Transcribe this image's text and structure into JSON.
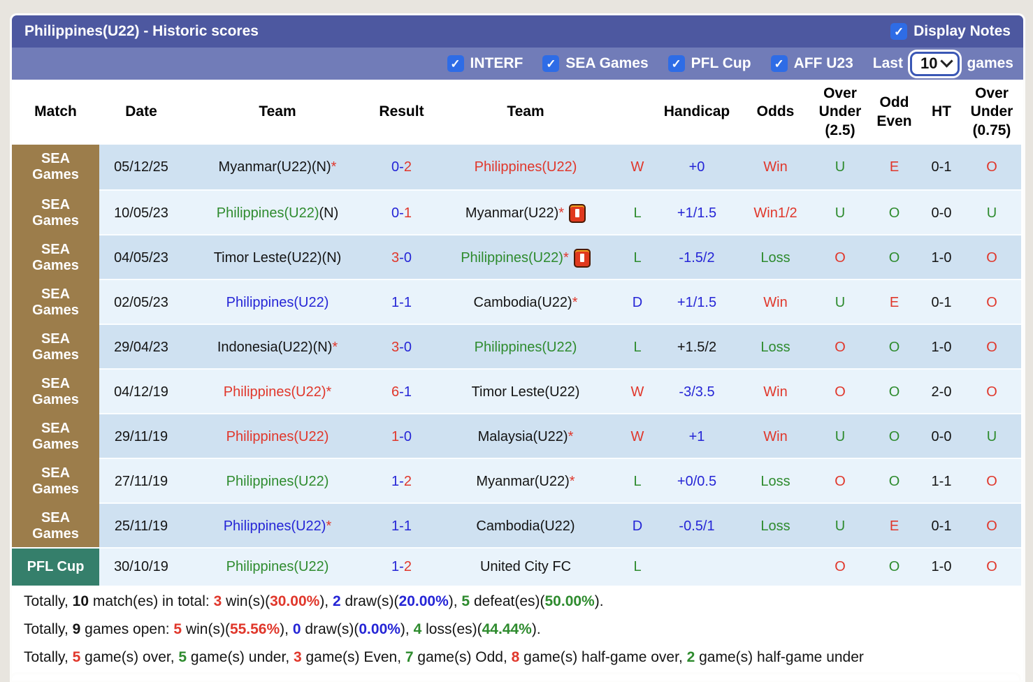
{
  "header": {
    "title": "Philippines(U22) - Historic scores",
    "display_notes_label": "Display Notes"
  },
  "filters": {
    "items": [
      "INTERF",
      "SEA Games",
      "PFL Cup",
      "AFF U23"
    ],
    "last_label": "Last",
    "last_value": "10",
    "games_label": "games"
  },
  "colors": {
    "red": "#e0372b",
    "green": "#2e8b2e",
    "blue": "#2525d6",
    "black": "#141414"
  },
  "match_colors": {
    "SEA Games": "#9c7d4b",
    "PFL Cup": "#357f6b"
  },
  "row_colors": {
    "dark": "#cfe1f1",
    "light": "#e9f3fb"
  },
  "table": {
    "columns": [
      "Match",
      "Date",
      "Team",
      "Result",
      "Team",
      "",
      "Handicap",
      "Odds",
      "Over\nUnder\n(2.5)",
      "Odd\nEven",
      "HT",
      "Over\nUnder\n(0.75)"
    ],
    "rows": [
      {
        "category": "SEA Games",
        "date": "05/12/25",
        "home": [
          {
            "t": "Myanmar(U22)(N)"
          },
          {
            "t": "*",
            "c": "red"
          }
        ],
        "home_card": false,
        "result": [
          {
            "t": "0",
            "c": "blue"
          },
          {
            "t": "-",
            "c": "blue"
          },
          {
            "t": "2",
            "c": "red"
          }
        ],
        "away": [
          {
            "t": "Philippines(U22)",
            "c": "red"
          }
        ],
        "away_card": false,
        "wdl": {
          "t": "W",
          "c": "red"
        },
        "handicap": {
          "t": "+0",
          "c": "blue"
        },
        "odds": {
          "t": "Win",
          "c": "red"
        },
        "ou25": {
          "t": "U",
          "c": "green"
        },
        "oddeven": {
          "t": "E",
          "c": "red"
        },
        "ht": "0-1",
        "ou75": {
          "t": "O",
          "c": "red"
        }
      },
      {
        "category": "SEA Games",
        "date": "10/05/23",
        "home": [
          {
            "t": "Philippines(U22)",
            "c": "green"
          },
          {
            "t": "(N)"
          }
        ],
        "home_card": false,
        "result": [
          {
            "t": "0",
            "c": "blue"
          },
          {
            "t": "-",
            "c": "blue"
          },
          {
            "t": "1",
            "c": "red"
          }
        ],
        "away": [
          {
            "t": "Myanmar(U22)"
          },
          {
            "t": "*",
            "c": "red"
          }
        ],
        "away_card": true,
        "wdl": {
          "t": "L",
          "c": "green"
        },
        "handicap": {
          "t": "+1/1.5",
          "c": "blue"
        },
        "odds": {
          "t": "Win1/2",
          "c": "red"
        },
        "ou25": {
          "t": "U",
          "c": "green"
        },
        "oddeven": {
          "t": "O",
          "c": "green"
        },
        "ht": "0-0",
        "ou75": {
          "t": "U",
          "c": "green"
        }
      },
      {
        "category": "SEA Games",
        "date": "04/05/23",
        "home": [
          {
            "t": "Timor Leste(U22)(N)"
          }
        ],
        "home_card": false,
        "result": [
          {
            "t": "3",
            "c": "red"
          },
          {
            "t": "-",
            "c": "blue"
          },
          {
            "t": "0",
            "c": "blue"
          }
        ],
        "away": [
          {
            "t": "Philippines(U22)",
            "c": "green"
          },
          {
            "t": "*",
            "c": "red"
          }
        ],
        "away_card": true,
        "wdl": {
          "t": "L",
          "c": "green"
        },
        "handicap": {
          "t": "-1.5/2",
          "c": "blue"
        },
        "odds": {
          "t": "Loss",
          "c": "green"
        },
        "ou25": {
          "t": "O",
          "c": "red"
        },
        "oddeven": {
          "t": "O",
          "c": "green"
        },
        "ht": "1-0",
        "ou75": {
          "t": "O",
          "c": "red"
        }
      },
      {
        "category": "SEA Games",
        "date": "02/05/23",
        "home": [
          {
            "t": "Philippines(U22)",
            "c": "blue"
          }
        ],
        "home_card": false,
        "result": [
          {
            "t": "1",
            "c": "blue"
          },
          {
            "t": "-",
            "c": "blue"
          },
          {
            "t": "1",
            "c": "blue"
          }
        ],
        "away": [
          {
            "t": "Cambodia(U22)"
          },
          {
            "t": "*",
            "c": "red"
          }
        ],
        "away_card": false,
        "wdl": {
          "t": "D",
          "c": "blue"
        },
        "handicap": {
          "t": "+1/1.5",
          "c": "blue"
        },
        "odds": {
          "t": "Win",
          "c": "red"
        },
        "ou25": {
          "t": "U",
          "c": "green"
        },
        "oddeven": {
          "t": "E",
          "c": "red"
        },
        "ht": "0-1",
        "ou75": {
          "t": "O",
          "c": "red"
        }
      },
      {
        "category": "SEA Games",
        "date": "29/04/23",
        "home": [
          {
            "t": "Indonesia(U22)(N)"
          },
          {
            "t": "*",
            "c": "red"
          }
        ],
        "home_card": false,
        "result": [
          {
            "t": "3",
            "c": "red"
          },
          {
            "t": "-",
            "c": "blue"
          },
          {
            "t": "0",
            "c": "blue"
          }
        ],
        "away": [
          {
            "t": "Philippines(U22)",
            "c": "green"
          }
        ],
        "away_card": false,
        "wdl": {
          "t": "L",
          "c": "green"
        },
        "handicap": {
          "t": "+1.5/2",
          "c": "black"
        },
        "odds": {
          "t": "Loss",
          "c": "green"
        },
        "ou25": {
          "t": "O",
          "c": "red"
        },
        "oddeven": {
          "t": "O",
          "c": "green"
        },
        "ht": "1-0",
        "ou75": {
          "t": "O",
          "c": "red"
        }
      },
      {
        "category": "SEA Games",
        "date": "04/12/19",
        "home": [
          {
            "t": "Philippines(U22)*",
            "c": "red"
          }
        ],
        "home_card": false,
        "result": [
          {
            "t": "6",
            "c": "red"
          },
          {
            "t": "-",
            "c": "blue"
          },
          {
            "t": "1",
            "c": "blue"
          }
        ],
        "away": [
          {
            "t": "Timor Leste(U22)"
          }
        ],
        "away_card": false,
        "wdl": {
          "t": "W",
          "c": "red"
        },
        "handicap": {
          "t": "-3/3.5",
          "c": "blue"
        },
        "odds": {
          "t": "Win",
          "c": "red"
        },
        "ou25": {
          "t": "O",
          "c": "red"
        },
        "oddeven": {
          "t": "O",
          "c": "green"
        },
        "ht": "2-0",
        "ou75": {
          "t": "O",
          "c": "red"
        }
      },
      {
        "category": "SEA Games",
        "date": "29/11/19",
        "home": [
          {
            "t": "Philippines(U22)",
            "c": "red"
          }
        ],
        "home_card": false,
        "result": [
          {
            "t": "1",
            "c": "red"
          },
          {
            "t": "-",
            "c": "blue"
          },
          {
            "t": "0",
            "c": "blue"
          }
        ],
        "away": [
          {
            "t": "Malaysia(U22)"
          },
          {
            "t": "*",
            "c": "red"
          }
        ],
        "away_card": false,
        "wdl": {
          "t": "W",
          "c": "red"
        },
        "handicap": {
          "t": "+1",
          "c": "blue"
        },
        "odds": {
          "t": "Win",
          "c": "red"
        },
        "ou25": {
          "t": "U",
          "c": "green"
        },
        "oddeven": {
          "t": "O",
          "c": "green"
        },
        "ht": "0-0",
        "ou75": {
          "t": "U",
          "c": "green"
        }
      },
      {
        "category": "SEA Games",
        "date": "27/11/19",
        "home": [
          {
            "t": "Philippines(U22)",
            "c": "green"
          }
        ],
        "home_card": false,
        "result": [
          {
            "t": "1",
            "c": "blue"
          },
          {
            "t": "-",
            "c": "blue"
          },
          {
            "t": "2",
            "c": "red"
          }
        ],
        "away": [
          {
            "t": "Myanmar(U22)"
          },
          {
            "t": "*",
            "c": "red"
          }
        ],
        "away_card": false,
        "wdl": {
          "t": "L",
          "c": "green"
        },
        "handicap": {
          "t": "+0/0.5",
          "c": "blue"
        },
        "odds": {
          "t": "Loss",
          "c": "green"
        },
        "ou25": {
          "t": "O",
          "c": "red"
        },
        "oddeven": {
          "t": "O",
          "c": "green"
        },
        "ht": "1-1",
        "ou75": {
          "t": "O",
          "c": "red"
        }
      },
      {
        "category": "SEA Games",
        "date": "25/11/19",
        "home": [
          {
            "t": "Philippines(U22)",
            "c": "blue"
          },
          {
            "t": "*",
            "c": "red"
          }
        ],
        "home_card": false,
        "result": [
          {
            "t": "1",
            "c": "blue"
          },
          {
            "t": "-",
            "c": "blue"
          },
          {
            "t": "1",
            "c": "blue"
          }
        ],
        "away": [
          {
            "t": "Cambodia(U22)"
          }
        ],
        "away_card": false,
        "wdl": {
          "t": "D",
          "c": "blue"
        },
        "handicap": {
          "t": "-0.5/1",
          "c": "blue"
        },
        "odds": {
          "t": "Loss",
          "c": "green"
        },
        "ou25": {
          "t": "U",
          "c": "green"
        },
        "oddeven": {
          "t": "E",
          "c": "red"
        },
        "ht": "0-1",
        "ou75": {
          "t": "O",
          "c": "red"
        }
      },
      {
        "category": "PFL Cup",
        "date": "30/10/19",
        "home": [
          {
            "t": "Philippines(U22)",
            "c": "green"
          }
        ],
        "home_card": false,
        "result": [
          {
            "t": "1",
            "c": "blue"
          },
          {
            "t": "-",
            "c": "blue"
          },
          {
            "t": "2",
            "c": "red"
          }
        ],
        "away": [
          {
            "t": "United City FC"
          }
        ],
        "away_card": false,
        "wdl": {
          "t": "L",
          "c": "green"
        },
        "handicap": {
          "t": "",
          "c": "black"
        },
        "odds": {
          "t": "",
          "c": "black"
        },
        "ou25": {
          "t": "O",
          "c": "red"
        },
        "oddeven": {
          "t": "O",
          "c": "green"
        },
        "ht": "1-0",
        "ou75": {
          "t": "O",
          "c": "red"
        }
      }
    ]
  },
  "summary": {
    "lines": [
      [
        {
          "t": "Totally, "
        },
        {
          "t": "10",
          "b": true
        },
        {
          "t": " match(es) in total: "
        },
        {
          "t": "3",
          "c": "red",
          "b": true
        },
        {
          "t": " win(s)("
        },
        {
          "t": "30.00%",
          "c": "red",
          "b": true
        },
        {
          "t": "), "
        },
        {
          "t": "2",
          "c": "blue",
          "b": true
        },
        {
          "t": " draw(s)("
        },
        {
          "t": "20.00%",
          "c": "blue",
          "b": true
        },
        {
          "t": "), "
        },
        {
          "t": "5",
          "c": "green",
          "b": true
        },
        {
          "t": " defeat(es)("
        },
        {
          "t": "50.00%",
          "c": "green",
          "b": true
        },
        {
          "t": ")."
        }
      ],
      [
        {
          "t": "Totally, "
        },
        {
          "t": "9",
          "b": true
        },
        {
          "t": " games open: "
        },
        {
          "t": "5",
          "c": "red",
          "b": true
        },
        {
          "t": " win(s)("
        },
        {
          "t": "55.56%",
          "c": "red",
          "b": true
        },
        {
          "t": "), "
        },
        {
          "t": "0",
          "c": "blue",
          "b": true
        },
        {
          "t": " draw(s)("
        },
        {
          "t": "0.00%",
          "c": "blue",
          "b": true
        },
        {
          "t": "), "
        },
        {
          "t": "4",
          "c": "green",
          "b": true
        },
        {
          "t": " loss(es)("
        },
        {
          "t": "44.44%",
          "c": "green",
          "b": true
        },
        {
          "t": ")."
        }
      ],
      [
        {
          "t": "Totally, "
        },
        {
          "t": "5",
          "c": "red",
          "b": true
        },
        {
          "t": " game(s) over, "
        },
        {
          "t": "5",
          "c": "green",
          "b": true
        },
        {
          "t": " game(s) under, "
        },
        {
          "t": "3",
          "c": "red",
          "b": true
        },
        {
          "t": " game(s) Even, "
        },
        {
          "t": "7",
          "c": "green",
          "b": true
        },
        {
          "t": " game(s) Odd, "
        },
        {
          "t": "8",
          "c": "red",
          "b": true
        },
        {
          "t": " game(s) half-game over, "
        },
        {
          "t": "2",
          "c": "green",
          "b": true
        },
        {
          "t": " game(s) half-game under"
        }
      ]
    ]
  }
}
